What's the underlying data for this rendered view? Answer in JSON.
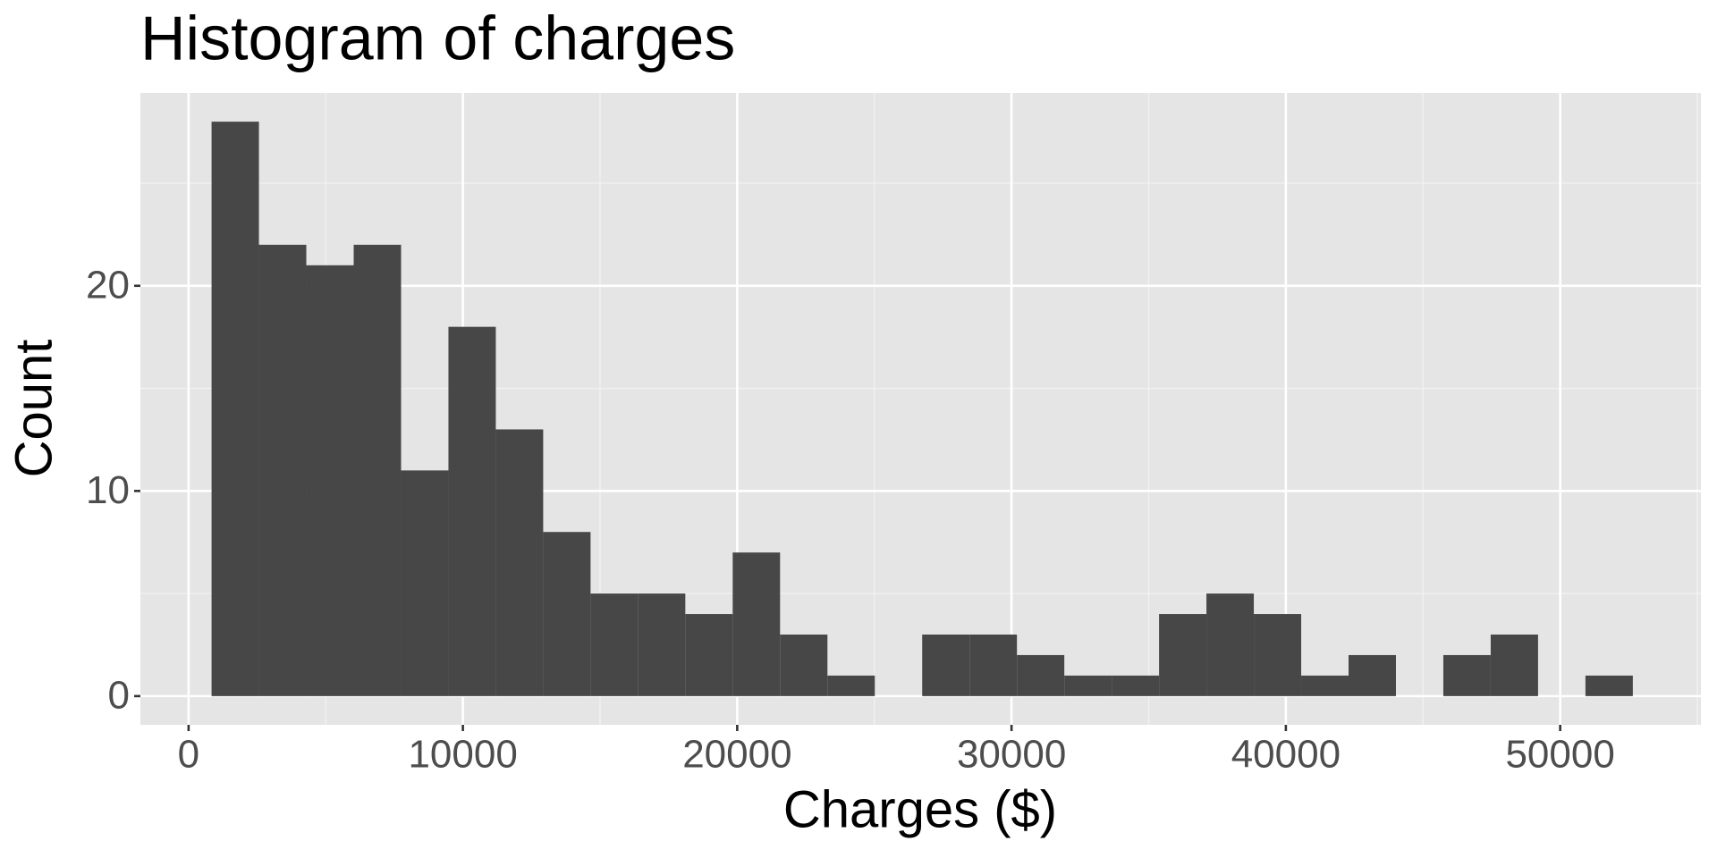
{
  "chart_data": {
    "type": "histogram",
    "title": "Histogram of charges",
    "x_label": "Charges ($)",
    "y_label": "Count",
    "bins": [
      838,
      2565,
      4292,
      6019,
      7746,
      9473,
      11200,
      12927,
      14654,
      16381,
      18108,
      19835,
      21562,
      23289,
      25016,
      26743,
      28470,
      30197,
      31924,
      33651,
      35378,
      37105,
      38832,
      40559,
      42286,
      44013,
      45740,
      47467,
      49194,
      50921,
      52648
    ],
    "values": [
      28,
      22,
      21,
      22,
      11,
      18,
      13,
      8,
      5,
      5,
      4,
      7,
      3,
      1,
      0,
      3,
      3,
      2,
      1,
      1,
      4,
      5,
      4,
      1,
      2,
      0,
      2,
      3,
      0,
      1
    ],
    "color": "#474747",
    "xlim": [
      -1756,
      55130
    ],
    "ylim": [
      -1.4,
      29.4
    ],
    "xticks": [
      0,
      10000,
      20000,
      30000,
      40000,
      50000
    ],
    "yticks": [
      0,
      10,
      20
    ],
    "grid": true
  }
}
